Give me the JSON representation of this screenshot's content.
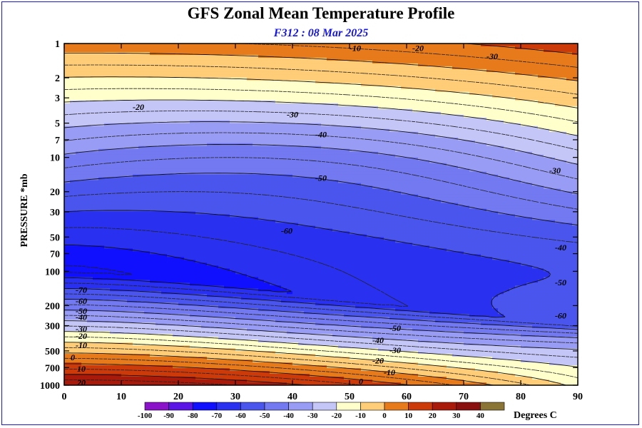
{
  "chart_data": {
    "type": "contour",
    "title": "GFS Zonal Mean Temperature Profile",
    "subtitle": "F312 : 08 Mar 2025",
    "xlabel": "",
    "ylabel": "PRESSURE *mb",
    "xlim": [
      0,
      90
    ],
    "x_ticks": [
      0,
      10,
      20,
      30,
      40,
      50,
      60,
      70,
      80,
      90
    ],
    "y_scale": "log",
    "ylim": [
      1000,
      1
    ],
    "y_ticks": [
      1,
      2,
      3,
      5,
      7,
      10,
      20,
      30,
      50,
      70,
      100,
      200,
      300,
      500,
      700,
      1000
    ],
    "units": "Degrees C",
    "contour_interval": 5,
    "solid_levels": [
      -70,
      -60,
      -50,
      -40,
      -30,
      -20,
      -10,
      0,
      10,
      20
    ],
    "dashed_levels": [
      -75,
      -65,
      -55,
      -45,
      -35,
      -25,
      -15,
      -5,
      5,
      15,
      25
    ],
    "colorbar": {
      "label": "Degrees C",
      "ticks": [
        -100,
        -90,
        -80,
        -70,
        -60,
        -50,
        -40,
        -30,
        -20,
        -10,
        0,
        10,
        20,
        30,
        40
      ],
      "colors": [
        "#8a12c8",
        "#5a14e6",
        "#1010ff",
        "#2a30f0",
        "#4a55ee",
        "#7379f0",
        "#989cf4",
        "#c4c6f8",
        "#ffffcc",
        "#ffcc77",
        "#e77a1a",
        "#cc3a0a",
        "#aa1a0a",
        "#8a1010",
        "#8a7436"
      ]
    },
    "contour_labels": [
      {
        "value": "-10",
        "lat": 51,
        "p": 1.1
      },
      {
        "value": "-20",
        "lat": 62,
        "p": 1.1
      },
      {
        "value": "-30",
        "lat": 75,
        "p": 1.3
      },
      {
        "value": "-20",
        "lat": 13,
        "p": 3.6
      },
      {
        "value": "-30",
        "lat": 40,
        "p": 4.2
      },
      {
        "value": "-40",
        "lat": 45,
        "p": 6.3
      },
      {
        "value": "-50",
        "lat": 45,
        "p": 15.2
      },
      {
        "value": "-30",
        "lat": 86,
        "p": 13
      },
      {
        "value": "-60",
        "lat": 39,
        "p": 44
      },
      {
        "value": "-40",
        "lat": 87,
        "p": 62
      },
      {
        "value": "-50",
        "lat": 87,
        "p": 125
      },
      {
        "value": "-60",
        "lat": 87,
        "p": 245
      },
      {
        "value": "-70",
        "lat": 3,
        "p": 146
      },
      {
        "value": "-60",
        "lat": 3,
        "p": 183
      },
      {
        "value": "-50",
        "lat": 3,
        "p": 223
      },
      {
        "value": "-40",
        "lat": 3,
        "p": 252
      },
      {
        "value": "-30",
        "lat": 3,
        "p": 320
      },
      {
        "value": "-20",
        "lat": 3,
        "p": 370
      },
      {
        "value": "-10",
        "lat": 3,
        "p": 447
      },
      {
        "value": "0",
        "lat": 1.5,
        "p": 570
      },
      {
        "value": "-50",
        "lat": 58,
        "p": 315
      },
      {
        "value": "-40",
        "lat": 55,
        "p": 402
      },
      {
        "value": "-30",
        "lat": 58,
        "p": 492
      },
      {
        "value": "-20",
        "lat": 55,
        "p": 608
      },
      {
        "value": "-10",
        "lat": 57,
        "p": 769
      },
      {
        "value": "0",
        "lat": 52,
        "p": 925
      },
      {
        "value": "10",
        "lat": 3,
        "p": 720
      },
      {
        "value": "20",
        "lat": 3,
        "p": 950
      }
    ]
  }
}
